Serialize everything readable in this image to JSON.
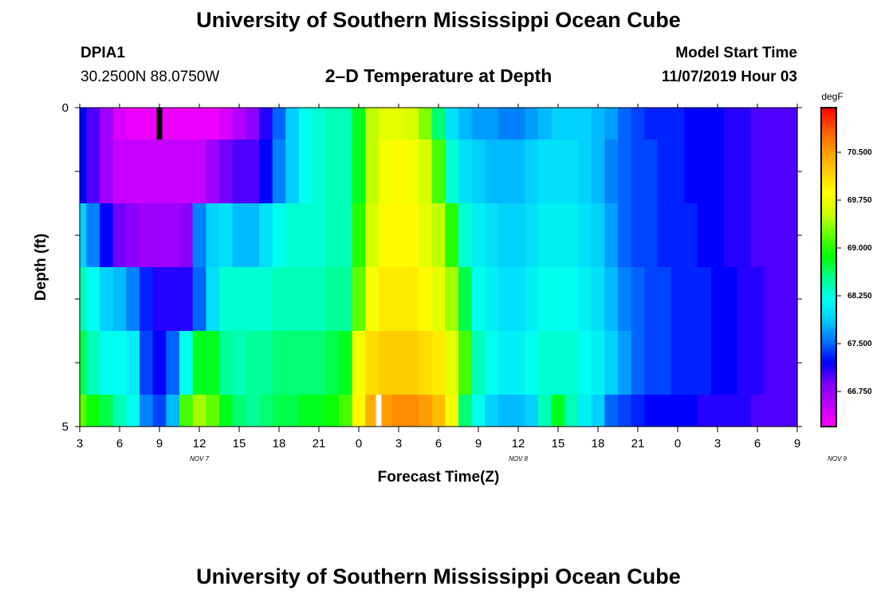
{
  "header": {
    "title_top": "University of Southern Mississippi Ocean Cube",
    "title_bottom": "University of Southern Mississippi Ocean Cube",
    "station": "DPIA1",
    "coordinates": "30.2500N 88.0750W",
    "subtitle": "2–D Temperature at Depth",
    "model_start_label": "Model Start Time",
    "model_start_value": "11/07/2019 Hour 03"
  },
  "colors": {
    "scale": [
      "#ff00ff",
      "#c000ff",
      "#8000ff",
      "#0000ff",
      "#0070ff",
      "#00ccff",
      "#00ffee",
      "#00ff90",
      "#00ff00",
      "#60ff00",
      "#ccff00",
      "#ffff00",
      "#ffcc00",
      "#ff9900",
      "#ff5500",
      "#ff0000"
    ],
    "marker_dark": "#000000",
    "marker_light": "#ffffff"
  },
  "chart_data": {
    "type": "heatmap",
    "xlabel": "Forecast Time(Z)",
    "ylabel": "Depth (ft)",
    "x_ticks": [
      "3",
      "6",
      "9",
      "12",
      "15",
      "18",
      "21",
      "0",
      "3",
      "6",
      "9",
      "12",
      "15",
      "18",
      "21",
      "0",
      "3",
      "6",
      "9"
    ],
    "date_labels": [
      {
        "label": "NOV 7",
        "hour_offset": 9
      },
      {
        "label": "NOV 8",
        "hour_offset": 33
      },
      {
        "label": "NOV 9",
        "hour_offset": 57
      }
    ],
    "x_range_hours": [
      0,
      54
    ],
    "y_ticks": [
      "0",
      "5"
    ],
    "ylim": [
      0,
      5
    ],
    "colorbar": {
      "unit": "degF",
      "labels": [
        "66.750",
        "67.500",
        "68.250",
        "69.000",
        "69.750",
        "70.500"
      ],
      "range": [
        66.2,
        71.2
      ]
    },
    "markers": [
      {
        "hour": 6,
        "layer": 0,
        "color": "dark"
      },
      {
        "hour": 22.5,
        "layer": 5,
        "color": "light"
      }
    ],
    "layer_bounds_ft": [
      0,
      0.5,
      1.5,
      2.5,
      3.5,
      4.5,
      5
    ],
    "layers": [
      [
        67.2,
        67.0,
        66.7,
        66.4,
        66.3,
        66.3,
        66.3,
        66.3,
        66.3,
        66.3,
        66.3,
        66.4,
        66.6,
        66.8,
        67.1,
        67.5,
        67.9,
        68.2,
        68.3,
        68.4,
        68.4,
        68.8,
        69.5,
        69.7,
        69.7,
        69.6,
        69.3,
        68.6,
        68.0,
        67.8,
        67.7,
        67.7,
        67.6,
        67.6,
        67.7,
        67.8,
        67.9,
        67.9,
        67.9,
        67.8,
        67.7,
        67.5,
        67.4,
        67.3,
        67.3,
        67.3,
        67.2,
        67.2,
        67.2,
        67.1,
        67.1,
        67.0,
        67.0,
        67.0,
        67.0
      ],
      [
        67.2,
        67.0,
        66.7,
        66.5,
        66.5,
        66.5,
        66.5,
        66.5,
        66.5,
        66.5,
        66.7,
        66.9,
        67.0,
        67.0,
        67.2,
        67.6,
        67.9,
        68.2,
        68.3,
        68.4,
        68.4,
        68.8,
        69.5,
        69.8,
        69.9,
        69.8,
        69.6,
        69.1,
        68.3,
        68.0,
        67.9,
        67.8,
        67.8,
        67.8,
        67.9,
        68.0,
        68.0,
        68.0,
        67.9,
        67.8,
        67.6,
        67.5,
        67.4,
        67.4,
        67.3,
        67.3,
        67.2,
        67.2,
        67.2,
        67.1,
        67.1,
        67.0,
        67.0,
        67.0,
        67.0
      ],
      [
        67.9,
        67.6,
        67.2,
        66.9,
        66.8,
        66.7,
        66.7,
        66.7,
        66.8,
        67.6,
        67.9,
        68.0,
        67.8,
        67.8,
        68.0,
        68.2,
        68.3,
        68.3,
        68.3,
        68.4,
        68.4,
        69.0,
        69.6,
        69.9,
        69.9,
        69.9,
        69.7,
        69.5,
        69.0,
        68.3,
        68.1,
        68.0,
        67.9,
        67.9,
        68.0,
        68.1,
        68.1,
        68.1,
        68.0,
        67.9,
        67.7,
        67.5,
        67.4,
        67.4,
        67.3,
        67.3,
        67.3,
        67.2,
        67.2,
        67.1,
        67.1,
        67.0,
        67.0,
        67.0,
        67.0
      ],
      [
        68.4,
        68.2,
        67.9,
        67.8,
        67.6,
        67.3,
        67.1,
        67.1,
        67.1,
        67.5,
        68.0,
        68.3,
        68.3,
        68.3,
        68.3,
        68.4,
        68.4,
        68.4,
        68.4,
        68.5,
        68.5,
        69.2,
        69.8,
        70.0,
        70.0,
        70.0,
        69.9,
        69.7,
        69.4,
        68.7,
        68.2,
        68.1,
        68.0,
        68.0,
        68.1,
        68.2,
        68.2,
        68.2,
        68.1,
        68.0,
        67.8,
        67.6,
        67.5,
        67.4,
        67.4,
        67.3,
        67.3,
        67.3,
        67.2,
        67.2,
        67.1,
        67.1,
        67.0,
        67.0,
        67.0
      ],
      [
        68.7,
        68.4,
        68.2,
        68.2,
        68.1,
        67.4,
        67.2,
        67.5,
        68.2,
        68.8,
        68.8,
        68.5,
        68.4,
        68.5,
        68.5,
        68.6,
        68.6,
        68.6,
        68.6,
        68.7,
        68.8,
        69.8,
        70.1,
        70.2,
        70.2,
        70.2,
        70.1,
        70.0,
        69.7,
        69.1,
        68.4,
        68.2,
        68.1,
        68.1,
        68.2,
        68.3,
        68.3,
        68.3,
        68.2,
        68.1,
        67.9,
        67.7,
        67.5,
        67.4,
        67.4,
        67.3,
        67.3,
        67.3,
        67.2,
        67.2,
        67.1,
        67.1,
        67.0,
        67.0,
        67.0
      ],
      [
        69.2,
        68.9,
        68.7,
        68.4,
        68.2,
        67.6,
        67.4,
        67.8,
        69.1,
        69.4,
        69.2,
        68.8,
        68.6,
        68.5,
        68.6,
        68.7,
        68.7,
        68.8,
        68.8,
        68.9,
        69.1,
        69.9,
        70.4,
        70.5,
        70.6,
        70.6,
        70.5,
        70.3,
        69.8,
        68.6,
        68.2,
        67.9,
        67.8,
        67.8,
        67.9,
        68.4,
        68.8,
        68.4,
        68.1,
        67.9,
        67.5,
        67.4,
        67.3,
        67.2,
        67.2,
        67.2,
        67.2,
        67.1,
        67.1,
        67.1,
        67.1,
        67.0,
        67.0,
        67.0,
        67.0
      ]
    ]
  }
}
